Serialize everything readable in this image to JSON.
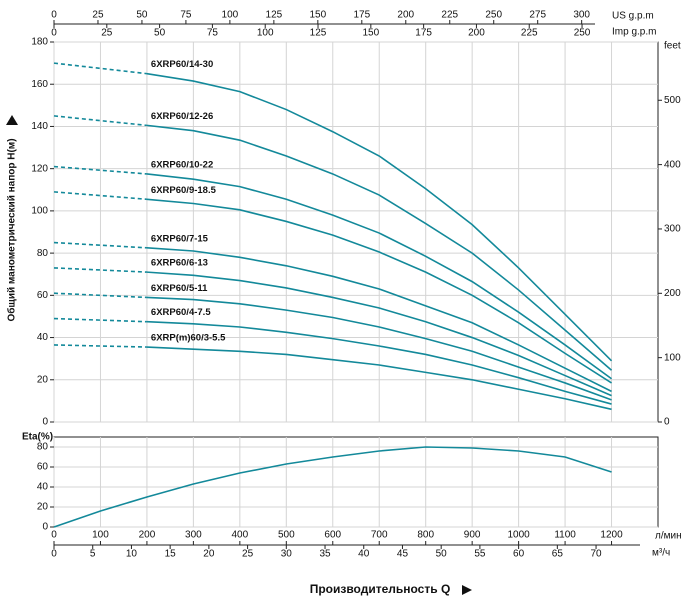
{
  "chart_data": [
    {
      "type": "line",
      "y_label": "Общий манометрический напор H(м)",
      "xlim": [
        0,
        1300
      ],
      "ylim": [
        0,
        180
      ],
      "yticks": [
        0,
        20,
        40,
        60,
        80,
        100,
        120,
        140,
        160,
        180
      ],
      "y2_label": "feet",
      "y2lim": [
        0,
        590.55
      ],
      "y2ticks": [
        0,
        100,
        200,
        300,
        400,
        500
      ],
      "top_axes": [
        {
          "label": "US g.p.m",
          "xlim": [
            0,
            343.4
          ],
          "xticks": [
            0,
            25,
            50,
            75,
            100,
            125,
            150,
            175,
            200,
            225,
            250,
            275,
            300
          ]
        },
        {
          "label": "Imp g.p.m",
          "xlim": [
            0,
            285.96
          ],
          "xticks": [
            0,
            25,
            50,
            75,
            100,
            125,
            150,
            175,
            200,
            225,
            250
          ]
        }
      ],
      "grid": true,
      "dashed_start": true,
      "x": [
        0,
        200,
        300,
        400,
        500,
        600,
        700,
        800,
        900,
        1000,
        1100,
        1200
      ],
      "series": [
        {
          "name": "6XRP60/14-30",
          "color": "#13899a",
          "values": [
            170,
            165,
            161.5,
            156.5,
            148,
            137.5,
            126,
            110.5,
            93.5,
            73,
            51,
            29
          ]
        },
        {
          "name": "6XRP60/12-26",
          "color": "#13899a",
          "values": [
            145,
            140.5,
            138,
            133.5,
            126,
            117.5,
            107.5,
            94,
            80,
            62.5,
            43.5,
            24.5
          ]
        },
        {
          "name": "6XRP60/10-22",
          "color": "#13899a",
          "values": [
            121,
            117.5,
            115,
            111.5,
            105.5,
            98,
            89.5,
            78.5,
            66.5,
            52,
            36.5,
            20.5
          ]
        },
        {
          "name": "6XRP60/9-18.5",
          "color": "#13899a",
          "values": [
            109,
            105.5,
            103.5,
            100.5,
            95,
            88.5,
            80.5,
            71,
            60,
            47,
            32.5,
            18.5
          ]
        },
        {
          "name": "6XRP60/7-15",
          "color": "#13899a",
          "values": [
            85,
            82.5,
            81,
            78,
            74,
            69,
            63,
            55,
            47,
            36.5,
            25.5,
            14.5
          ]
        },
        {
          "name": "6XRP60/6-13",
          "color": "#13899a",
          "values": [
            73,
            71,
            69.5,
            67,
            63.5,
            59,
            54,
            47.5,
            40,
            31.5,
            22,
            12.5
          ]
        },
        {
          "name": "6XRP60/5-11",
          "color": "#13899a",
          "values": [
            61,
            59,
            58,
            56,
            53,
            49.5,
            45,
            39.5,
            33.5,
            26,
            18.5,
            10.5
          ]
        },
        {
          "name": "6XRP60/4-7.5",
          "color": "#13899a",
          "values": [
            49,
            47.5,
            46.5,
            45,
            42.5,
            39.5,
            36,
            32,
            27,
            21,
            14.5,
            8.5
          ]
        },
        {
          "name": "6XRP(m)60/3-5.5",
          "color": "#13899a",
          "values": [
            36.5,
            35.5,
            34.5,
            33.5,
            32,
            29.5,
            27,
            23.5,
            20,
            15.5,
            11,
            6
          ]
        }
      ]
    },
    {
      "type": "line",
      "y_label": "Eta(%)",
      "ylim": [
        0,
        90
      ],
      "yticks": [
        0,
        20,
        40,
        60,
        80
      ],
      "x_label": "л/мин",
      "xlim": [
        0,
        1300
      ],
      "xticks": [
        0,
        100,
        200,
        300,
        400,
        500,
        600,
        700,
        800,
        900,
        1000,
        1100,
        1200
      ],
      "x2_label": "м³/ч",
      "x2lim": [
        0,
        78
      ],
      "x2ticks": [
        0,
        5,
        10,
        15,
        20,
        25,
        30,
        35,
        40,
        45,
        50,
        55,
        60,
        65,
        70
      ],
      "x_title": "Производительность Q",
      "grid": true,
      "color": "#13899a",
      "x": [
        0,
        100,
        200,
        300,
        400,
        500,
        600,
        700,
        800,
        900,
        1000,
        1100,
        1200
      ],
      "values": [
        0,
        16,
        30,
        43,
        54,
        63,
        70,
        76,
        80,
        79,
        76,
        70,
        55
      ]
    }
  ]
}
